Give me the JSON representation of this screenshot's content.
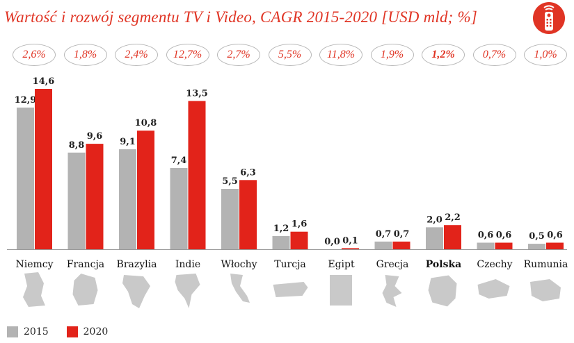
{
  "title": "Wartość i rozwój segmentu TV i Video, CAGR 2015-2020 [USD mld; %]",
  "colors": {
    "s2015": "#b3b3b3",
    "s2020": "#e2231a",
    "accent": "#e03424",
    "map": "#c9c9c9"
  },
  "icon": "tv-remote-icon",
  "cagr": [
    "2,6%",
    "1,8%",
    "2,4%",
    "12,7%",
    "2,7%",
    "5,5%",
    "11,8%",
    "1,9%",
    "1,2%",
    "0,7%",
    "1,0%"
  ],
  "highlight": "Polska",
  "chart_data": {
    "type": "bar",
    "title": "Wartość i rozwój segmentu TV i Video, CAGR 2015-2020 [USD mld; %]",
    "categories": [
      "Niemcy",
      "Francja",
      "Brazylia",
      "Indie",
      "Włochy",
      "Turcja",
      "Egipt",
      "Grecja",
      "Polska",
      "Czechy",
      "Rumunia"
    ],
    "series": [
      {
        "name": "2015",
        "values": [
          12.9,
          8.8,
          9.1,
          7.4,
          5.5,
          1.2,
          0.0,
          0.7,
          2.0,
          0.6,
          0.5
        ],
        "labels": [
          "12,9",
          "8,8",
          "9,1",
          "7,4",
          "5,5",
          "1,2",
          "0,0",
          "0,7",
          "2,0",
          "0,6",
          "0,5"
        ]
      },
      {
        "name": "2020",
        "values": [
          14.6,
          9.6,
          10.8,
          13.5,
          6.3,
          1.6,
          0.1,
          0.7,
          2.2,
          0.6,
          0.6
        ],
        "labels": [
          "14,6",
          "9,6",
          "10,8",
          "13,5",
          "6,3",
          "1,6",
          "0,1",
          "0,7",
          "2,2",
          "0,6",
          "0,6"
        ]
      }
    ],
    "ylim": [
      0,
      14.6
    ],
    "xlabel": "",
    "ylabel": "USD mld",
    "legend": "bottom-left",
    "grid": false
  }
}
